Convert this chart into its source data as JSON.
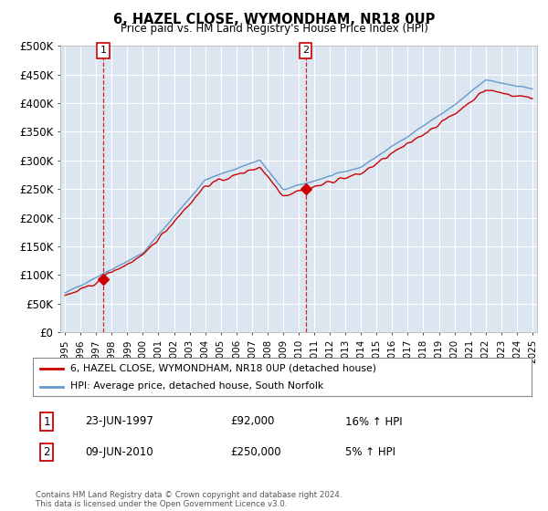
{
  "title": "6, HAZEL CLOSE, WYMONDHAM, NR18 0UP",
  "subtitle": "Price paid vs. HM Land Registry's House Price Index (HPI)",
  "legend_line1": "6, HAZEL CLOSE, WYMONDHAM, NR18 0UP (detached house)",
  "legend_line2": "HPI: Average price, detached house, South Norfolk",
  "sale1_date": "23-JUN-1997",
  "sale1_price": 92000,
  "sale1_hpi": "16% ↑ HPI",
  "sale1_year": 1997.46,
  "sale2_date": "09-JUN-2010",
  "sale2_price": 250000,
  "sale2_hpi": "5% ↑ HPI",
  "sale2_year": 2010.44,
  "footer": "Contains HM Land Registry data © Crown copyright and database right 2024.\nThis data is licensed under the Open Government Licence v3.0.",
  "bg_color": "#dce6f1",
  "grid_color": "#ffffff",
  "line_red": "#cc0000",
  "line_blue": "#6699cc",
  "ylim_min": 0,
  "ylim_max": 500000,
  "xlim_min": 1994.7,
  "xlim_max": 2025.3
}
